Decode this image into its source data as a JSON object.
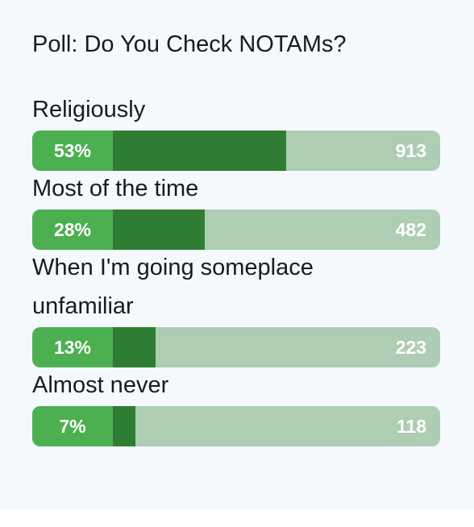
{
  "poll": {
    "title": "Poll: Do You Check NOTAMs?",
    "options": [
      {
        "label": "Religiously",
        "percent_label": "53%",
        "percent": 53,
        "votes": "913"
      },
      {
        "label": "Most of the time",
        "percent_label": "28%",
        "percent": 28,
        "votes": "482"
      },
      {
        "label": "When I'm going someplace unfamiliar",
        "percent_label": "13%",
        "percent": 13,
        "votes": "223"
      },
      {
        "label": "Almost never",
        "percent_label": "7%",
        "percent": 7,
        "votes": "118"
      }
    ]
  },
  "colors": {
    "background": "#f4f9fd",
    "percent_box": "#4caf50",
    "fill": "#2e7d32",
    "track": "#aecdb3",
    "text": "#1b1b1b"
  }
}
